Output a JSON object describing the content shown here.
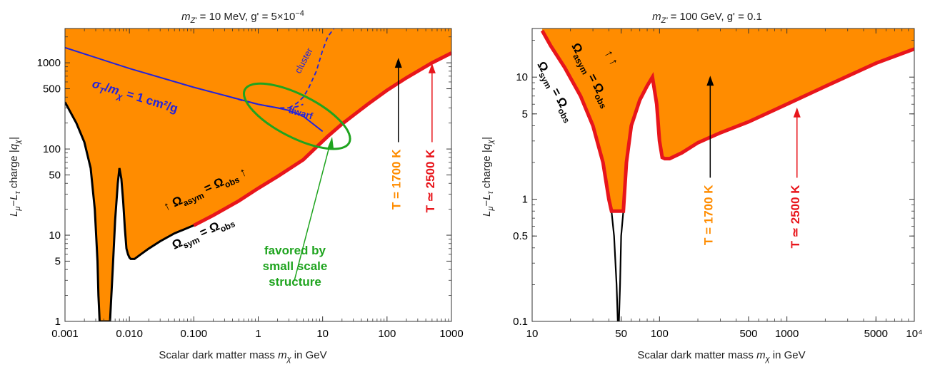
{
  "chart_data": [
    {
      "type": "area",
      "title": "m_Z' = 10 MeV, g' = 5×10^-4",
      "xlabel": "Scalar dark matter mass m_χ in GeV",
      "ylabel": "L_μ−L_τ charge |q_χ|",
      "xscale": "log",
      "yscale": "log",
      "xlim": [
        0.001,
        1000
      ],
      "ylim": [
        1,
        2500
      ],
      "grid": false,
      "xticks": [
        0.001,
        0.01,
        0.1,
        1,
        10,
        100,
        1000
      ],
      "xtick_labels": [
        "0.001",
        "0.010",
        "0.100",
        "1",
        "10",
        "100",
        "1000"
      ],
      "yticks": [
        1,
        5,
        10,
        50,
        100,
        500,
        1000
      ],
      "ytick_labels": [
        "1",
        "5",
        "10",
        "50",
        "100",
        "500",
        "1000"
      ],
      "colors": {
        "region": "#ff8c00",
        "asym": "#e8151b",
        "sym": "#000000",
        "sigma": "#2222dd",
        "favored": "#1fa41f",
        "t1700": "#ff8c00",
        "t2500": "#e8151b"
      },
      "series": [
        {
          "name": "Ω_asym = Ω_obs",
          "x": [
            0.1,
            0.2,
            0.5,
            1,
            2,
            5,
            8,
            12,
            20,
            50,
            100,
            200,
            500,
            1000
          ],
          "y": [
            13,
            17,
            25,
            35,
            48,
            75,
            105,
            140,
            195,
            330,
            480,
            670,
            1000,
            1300
          ]
        },
        {
          "name": "Ω_sym = Ω_obs",
          "x": [
            0.001,
            0.0015,
            0.002,
            0.0025,
            0.0029,
            0.0032,
            0.0033,
            0.00345,
            0.0036,
            0.0037,
            0.00385,
            0.004,
            0.0042,
            0.0045,
            0.0048,
            0.005,
            0.0055,
            0.006,
            0.0066,
            0.007,
            0.0075,
            0.008,
            0.0085,
            0.009,
            0.0095,
            0.01,
            0.0105,
            0.011,
            0.012,
            0.015,
            0.02,
            0.03,
            0.05,
            0.1
          ],
          "y": [
            350,
            200,
            120,
            60,
            20,
            5,
            2,
            1,
            1,
            1,
            1,
            1,
            1,
            1,
            1,
            1,
            4,
            15,
            40,
            60,
            45,
            25,
            12,
            7,
            6,
            5.5,
            5.3,
            5.3,
            5.3,
            6,
            7,
            8.5,
            10.5,
            13
          ]
        },
        {
          "name": "σ_T/m_χ = 1 cm²/g",
          "x": [
            0.001,
            0.01,
            0.1,
            1,
            2,
            3,
            5,
            10
          ],
          "y": [
            1500,
            860,
            520,
            330,
            300,
            280,
            240,
            160
          ]
        },
        {
          "name": "dwarf",
          "x": [
            0.3,
            0.6,
            1,
            2,
            3,
            4,
            5
          ],
          "y": [
            420,
            360,
            330,
            300,
            300,
            310,
            330
          ]
        },
        {
          "name": "cluster",
          "x": [
            3,
            4,
            5,
            6,
            8,
            10,
            12,
            15
          ],
          "y": [
            300,
            340,
            400,
            500,
            800,
            1400,
            2000,
            2500
          ]
        }
      ],
      "ellipse_center": [
        4,
        240
      ],
      "annotations": {
        "sigma": "σT/mχ = 1 cm²/g",
        "cluster": "cluster",
        "dwarf": "dwarf",
        "asym": "↑ Ωasym = Ωobs ↑",
        "asym_small": "↑ Ωasym = Ωobs",
        "sym": "Ωsym = Ωobs",
        "favored": [
          "favored by",
          "small scale",
          "structure"
        ],
        "t1700": "T = 1700 K",
        "t2500": "T ≃ 2500 K"
      },
      "arrows": [
        {
          "x": 150,
          "y_from": 120,
          "y_to": 1100,
          "color": "#000000",
          "label": "T = 1700 K"
        },
        {
          "x": 500,
          "y_from": 120,
          "y_to": 950,
          "color": "#e8151b",
          "label": "T ≃ 2500 K"
        }
      ]
    },
    {
      "type": "area",
      "title": "m_Z' = 100 GeV, g' = 0.1",
      "xlabel": "Scalar dark matter mass m_χ in GeV",
      "ylabel": "L_μ−L_τ charge |q_χ|",
      "xscale": "log",
      "yscale": "log",
      "xlim": [
        10,
        10000
      ],
      "ylim": [
        0.1,
        25
      ],
      "grid": false,
      "xticks": [
        10,
        50,
        100,
        500,
        1000,
        5000,
        10000
      ],
      "xtick_labels": [
        "10",
        "50",
        "100",
        "500",
        "1000",
        "5000",
        "10⁴"
      ],
      "yticks": [
        0.1,
        0.5,
        1,
        5,
        10
      ],
      "ytick_labels": [
        "0.1",
        "0.5",
        "1",
        "5",
        "10"
      ],
      "series": [
        {
          "name": "Ω_sym = Ω_obs",
          "x": [
            12,
            14,
            18,
            24,
            30,
            36,
            40,
            42,
            44,
            46,
            47,
            48,
            49,
            50,
            52
          ],
          "y": [
            24,
            18,
            12,
            7,
            4,
            2,
            1,
            0.8,
            0.5,
            0.2,
            0.1,
            0.1,
            0.2,
            0.5,
            0.8
          ]
        },
        {
          "name": "Ω_asym = Ω_obs",
          "x": [
            12,
            14,
            18,
            24,
            30,
            36,
            40,
            42,
            44,
            50,
            52,
            55,
            60,
            70,
            80,
            88,
            95,
            100,
            105,
            110,
            120,
            150,
            200,
            300,
            500,
            1000,
            2000,
            5000,
            10000
          ],
          "y": [
            24,
            18,
            12,
            7,
            4,
            2,
            1,
            0.8,
            0.8,
            0.8,
            0.8,
            2,
            4,
            6.5,
            8.5,
            10,
            6,
            3,
            2.2,
            2.15,
            2.15,
            2.4,
            2.9,
            3.5,
            4.3,
            6,
            8.4,
            13,
            17
          ]
        }
      ],
      "annotations": {
        "asym": "Ωasym = Ωobs",
        "arrows_up": "↑ ↑",
        "sym": "Ωsym = Ωobs",
        "t1700": "T = 1700 K",
        "t2500": "T ≃ 2500 K"
      },
      "arrows": [
        {
          "x": 250,
          "y_from": 1.5,
          "y_to": 10,
          "color": "#000000",
          "label": "T = 1700 K"
        },
        {
          "x": 1200,
          "y_from": 1.5,
          "y_to": 5.5,
          "color": "#e8151b",
          "label": "T ≃ 2500 K"
        }
      ]
    }
  ]
}
